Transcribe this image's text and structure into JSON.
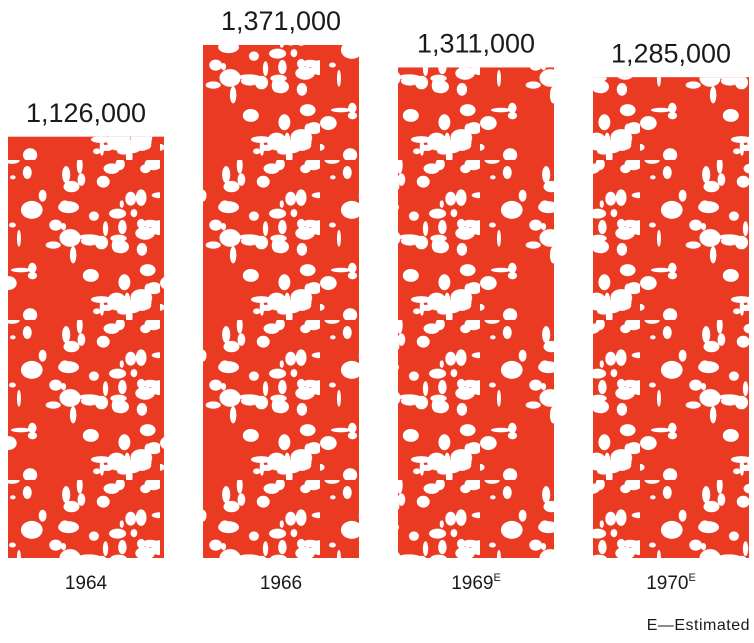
{
  "chart_data": {
    "type": "bar",
    "categories": [
      "1964",
      "1966",
      "1969",
      "1970"
    ],
    "category_marks": [
      null,
      null,
      "E",
      "E"
    ],
    "values": [
      1126000,
      1371000,
      1311000,
      1285000
    ],
    "value_labels": [
      "1,126,000",
      "1,371,000",
      "1,311,000",
      "1,285,000"
    ],
    "color": "#ea3a22",
    "footnote": "E—Estimated"
  }
}
